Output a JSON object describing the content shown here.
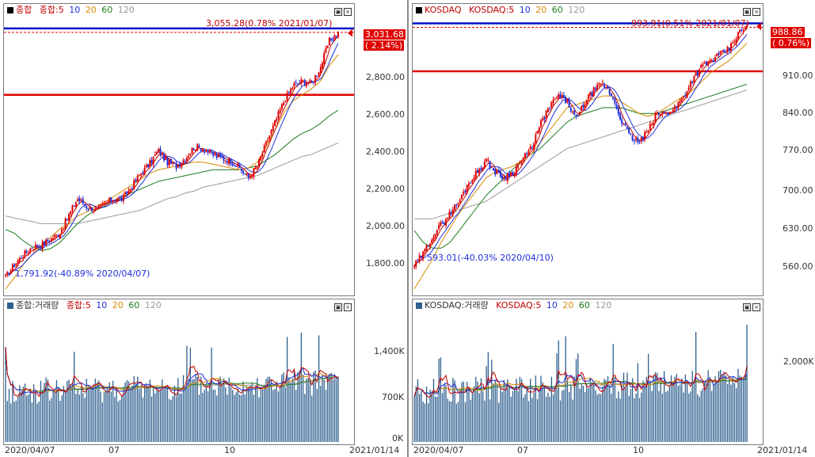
{
  "colors": {
    "up": "#e00000",
    "down": "#1f2fd8",
    "ma5": "#c00000",
    "ma10": "#1f2fd8",
    "ma20": "#d88b00",
    "ma60": "#1e7b1e",
    "ma120": "#9a9a9a",
    "hline_blue": "#0010c8",
    "hline_red": "#e00000",
    "volume": "#2d5f8f"
  },
  "left": {
    "legend": [
      "종합",
      "종합:5",
      "10",
      "20",
      "60",
      "120"
    ],
    "price_axis": [
      "3,031.68",
      "2,800.00",
      "2,600.00",
      "2,400.00",
      "2,200.00",
      "2,000.00",
      "1,800.00"
    ],
    "current_price": "3,031.68",
    "current_change": "( 2.14%)",
    "high_annotation": "3,055.28(0.78% 2021/01/07)",
    "low_annotation": "1,791.92(-40.89% 2020/04/07)",
    "volume_legend": [
      "종합:거래량",
      "종합:5",
      "10",
      "20",
      "60",
      "120"
    ],
    "volume_axis": [
      "1,400K",
      "700K",
      "0K"
    ],
    "x_labels": [
      "2020/04/07",
      "07",
      "10",
      "2021/01/14"
    ]
  },
  "right": {
    "legend": [
      "KOSDAQ",
      "KOSDAQ:5",
      "10",
      "20",
      "60",
      "120"
    ],
    "price_axis": [
      "988.86",
      "910.00",
      "840.00",
      "770.00",
      "700.00",
      "630.00",
      "560.00"
    ],
    "current_price": "988.86",
    "current_change": "( 0.76%)",
    "high_annotation": "993.91(0.51% 2021/01/07)",
    "low_annotation": "593.01(-40.03% 2020/04/10)",
    "volume_legend": [
      "KOSDAQ:거래량",
      "KOSDAQ:5",
      "10",
      "20",
      "60",
      "120"
    ],
    "volume_axis": [
      "2,000K"
    ],
    "x_labels": [
      "2020/04/07",
      "07",
      "10",
      "2021/01/14"
    ]
  },
  "chart_data": [
    {
      "type": "candlestick",
      "title": "종합",
      "ylim": [
        1700,
        3100
      ],
      "hlines": [
        3055.28,
        2710
      ],
      "ma_legend": [
        "5",
        "10",
        "20",
        "60",
        "120"
      ],
      "close_path": [
        1760,
        1830,
        1880,
        1920,
        1930,
        1960,
        1990,
        2080,
        2170,
        2130,
        2110,
        2140,
        2170,
        2170,
        2230,
        2300,
        2350,
        2420,
        2360,
        2340,
        2380,
        2440,
        2430,
        2400,
        2380,
        2370,
        2330,
        2280,
        2340,
        2460,
        2570,
        2680,
        2760,
        2780,
        2770,
        2850,
        2990,
        3031.68
      ],
      "ma20_path": [
        1700,
        1760,
        1830,
        1880,
        1930,
        1970,
        2010,
        2040,
        2080,
        2100,
        2130,
        2150,
        2180,
        2210,
        2240,
        2270,
        2300,
        2320,
        2330,
        2340,
        2350,
        2360,
        2360,
        2350,
        2340,
        2330,
        2320,
        2330,
        2360,
        2440,
        2530,
        2620,
        2680,
        2710,
        2740,
        2780,
        2860,
        2920
      ],
      "ma60_path": [
        2010,
        1990,
        1950,
        1920,
        1900,
        1910,
        1940,
        1990,
        2040,
        2080,
        2110,
        2130,
        2160,
        2180,
        2200,
        2220,
        2240,
        2260,
        2270,
        2280,
        2290,
        2300,
        2310,
        2320,
        2320,
        2320,
        2320,
        2330,
        2340,
        2370,
        2400,
        2440,
        2480,
        2510,
        2530,
        2560,
        2600,
        2630
      ],
      "ma120_path": [
        2080,
        2070,
        2060,
        2050,
        2040,
        2040,
        2040,
        2040,
        2040,
        2050,
        2060,
        2070,
        2080,
        2090,
        2100,
        2110,
        2130,
        2150,
        2170,
        2180,
        2200,
        2210,
        2230,
        2240,
        2250,
        2260,
        2270,
        2280,
        2290,
        2310,
        2330,
        2350,
        2370,
        2390,
        2400,
        2420,
        2440,
        2460
      ],
      "volume_axis": [
        1400,
        700,
        0
      ],
      "volume_ylim": [
        0,
        1800
      ]
    },
    {
      "type": "candlestick",
      "title": "KOSDAQ",
      "ylim": [
        540,
        1000
      ],
      "hlines": [
        993.91,
        912
      ],
      "ma_legend": [
        "5",
        "10",
        "20",
        "60",
        "120"
      ],
      "close_path": [
        580,
        600,
        630,
        650,
        670,
        690,
        720,
        740,
        760,
        740,
        730,
        740,
        760,
        780,
        820,
        850,
        870,
        860,
        830,
        860,
        880,
        890,
        870,
        830,
        800,
        790,
        810,
        840,
        840,
        850,
        870,
        900,
        920,
        930,
        940,
        950,
        975,
        988.86
      ],
      "ma20_path": [
        540,
        565,
        590,
        620,
        645,
        670,
        690,
        710,
        730,
        740,
        745,
        750,
        760,
        770,
        790,
        810,
        830,
        850,
        855,
        860,
        865,
        870,
        870,
        860,
        850,
        840,
        835,
        840,
        850,
        860,
        870,
        880,
        895,
        910,
        920,
        930,
        945,
        960
      ],
      "ma60_path": [
        640,
        620,
        610,
        610,
        620,
        640,
        660,
        680,
        700,
        715,
        730,
        745,
        760,
        770,
        780,
        795,
        810,
        825,
        835,
        840,
        845,
        850,
        850,
        850,
        845,
        840,
        840,
        840,
        845,
        850,
        855,
        860,
        865,
        870,
        875,
        880,
        885,
        890
      ],
      "ma120_path": [
        660,
        660,
        660,
        665,
        670,
        675,
        680,
        685,
        690,
        700,
        710,
        720,
        730,
        740,
        750,
        760,
        770,
        780,
        785,
        790,
        795,
        800,
        805,
        810,
        815,
        820,
        825,
        830,
        835,
        840,
        845,
        850,
        855,
        860,
        865,
        870,
        875,
        880
      ],
      "volume_axis": [
        2000
      ],
      "volume_ylim": [
        0,
        3200
      ]
    }
  ]
}
